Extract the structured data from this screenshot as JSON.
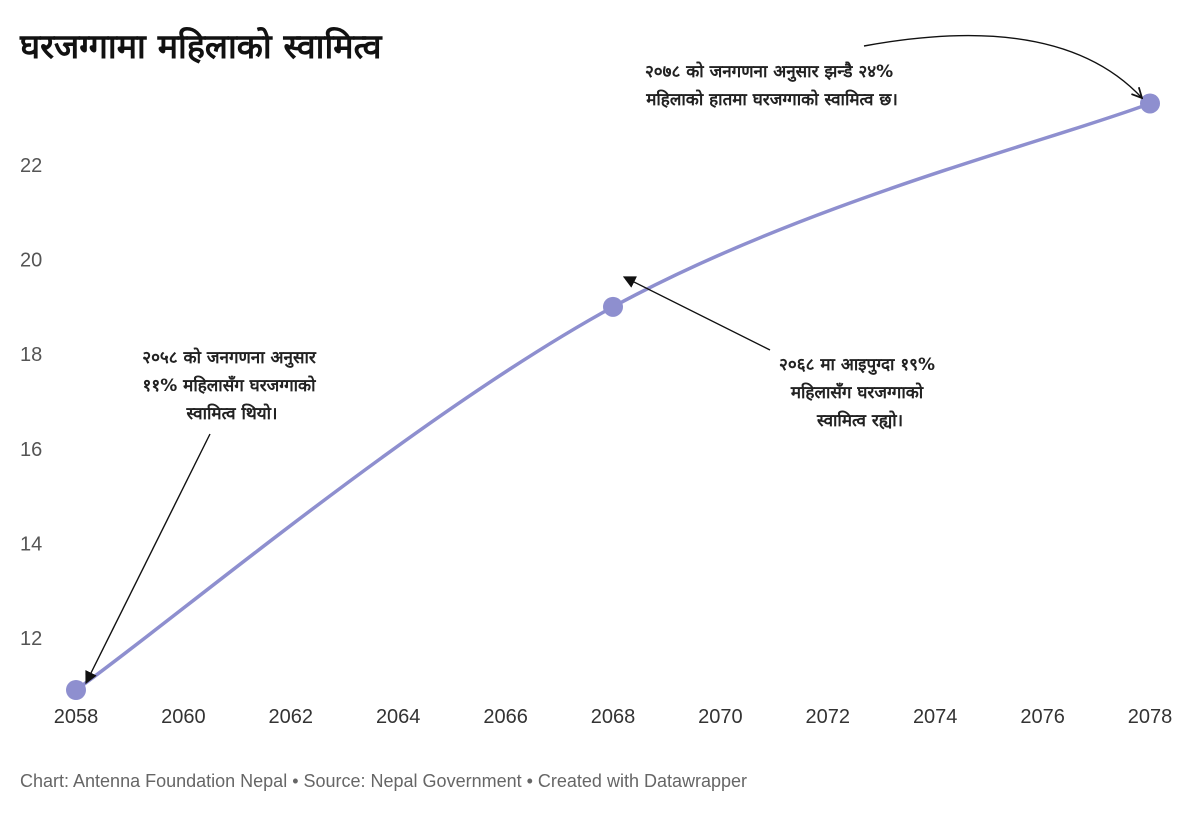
{
  "chart_data": {
    "type": "line",
    "title": "घरजग्गामा महिलाको स्वामित्व",
    "x": [
      2058,
      2068,
      2078
    ],
    "series": [
      {
        "values": [
          10.9,
          19.0,
          23.3
        ],
        "color": "#8e8fcf"
      }
    ],
    "xlim": [
      2058,
      2078
    ],
    "ylim": [
      10.9,
      23.5
    ],
    "x_ticks": [
      "2058",
      "2060",
      "2062",
      "2064",
      "2066",
      "2068",
      "2070",
      "2072",
      "2074",
      "2076",
      "2078"
    ],
    "y_ticks": [
      "12",
      "14",
      "16",
      "18",
      "20",
      "22"
    ],
    "grid": false,
    "annotations": [
      {
        "lines": [
          "२०५८ को जनगणना अनुसार",
          "११% महिलासँग घरजग्गाको",
          "स्वामित्व थियो।"
        ]
      },
      {
        "lines": [
          "२०६८ मा आइपुग्दा १९%",
          "महिलासँग घरजग्गाको",
          "स्वामित्व रह्यो।"
        ]
      },
      {
        "lines": [
          "२०७८ को जनगणना अनुसार झन्डै २४%",
          "महिलाको हातमा घरजग्गाको स्वामित्व छ।"
        ]
      }
    ],
    "footer": "Chart: Antenna Foundation Nepal • Source: Nepal Government • Created with Datawrapper"
  }
}
